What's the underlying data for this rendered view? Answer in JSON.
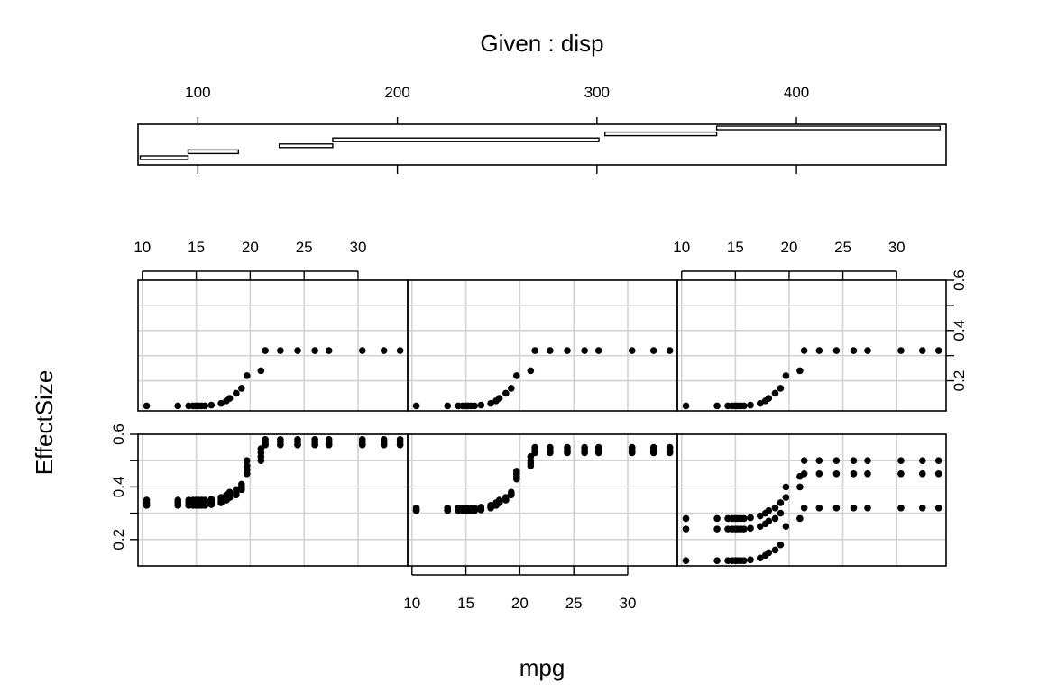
{
  "chart_data": {
    "type": "scatter",
    "layout": "coplot",
    "title": "Given : disp",
    "xlabel": "mpg",
    "ylabel": "EffectSize",
    "given": {
      "ticks": [
        100,
        200,
        300,
        400
      ],
      "range": [
        70,
        475
      ],
      "intervals": [
        [
          71.1,
          95.1
        ],
        [
          95.1,
          120.3
        ],
        [
          140.8,
          167.6
        ],
        [
          167.6,
          301
        ],
        [
          304,
          360
        ],
        [
          360,
          472
        ]
      ]
    },
    "xticks": [
      10,
      15,
      20,
      25,
      30
    ],
    "xlim": [
      9.6,
      34.6
    ],
    "top_row": {
      "yticks": [
        0.2,
        0.4,
        0.6
      ],
      "ylim": [
        0.08,
        0.6
      ],
      "y_axis_side": "right"
    },
    "bottom_row": {
      "yticks": [
        0.2,
        0.4,
        0.6
      ],
      "ylim": [
        0.1,
        0.6
      ],
      "y_axis_side": "left"
    },
    "mpg_values": [
      10.4,
      13.3,
      14.3,
      14.7,
      15.0,
      15.2,
      15.5,
      15.8,
      16.4,
      17.3,
      17.8,
      18.1,
      18.7,
      19.2,
      19.7,
      21.0,
      21.4,
      22.8,
      24.4,
      26.0,
      27.3,
      30.4,
      32.4,
      33.9
    ],
    "panels": [
      {
        "row": "top",
        "col": 1,
        "series": [
          {
            "y": [
              0.1,
              0.1,
              0.1,
              0.1,
              0.1,
              0.1,
              0.1,
              0.1,
              0.103,
              0.11,
              0.12,
              0.13,
              0.15,
              0.17,
              0.22,
              0.24,
              0.32,
              0.32,
              0.32,
              0.32,
              0.32,
              0.32,
              0.32,
              0.32
            ]
          }
        ]
      },
      {
        "row": "top",
        "col": 2,
        "series": [
          {
            "y": [
              0.1,
              0.1,
              0.1,
              0.1,
              0.1,
              0.1,
              0.1,
              0.1,
              0.103,
              0.11,
              0.12,
              0.13,
              0.15,
              0.17,
              0.22,
              0.24,
              0.32,
              0.32,
              0.32,
              0.32,
              0.32,
              0.32,
              0.32,
              0.32
            ]
          }
        ]
      },
      {
        "row": "top",
        "col": 3,
        "series": [
          {
            "y": [
              0.1,
              0.1,
              0.1,
              0.1,
              0.1,
              0.1,
              0.1,
              0.1,
              0.103,
              0.11,
              0.12,
              0.13,
              0.15,
              0.17,
              0.22,
              0.24,
              0.32,
              0.32,
              0.32,
              0.32,
              0.32,
              0.32,
              0.32,
              0.32
            ]
          }
        ]
      },
      {
        "row": "bottom",
        "col": 1,
        "series": [
          {
            "y": [
              0.33,
              0.33,
              0.33,
              0.33,
              0.33,
              0.33,
              0.33,
              0.33,
              0.333,
              0.34,
              0.35,
              0.36,
              0.37,
              0.39,
              0.45,
              0.5,
              0.56,
              0.56,
              0.56,
              0.56,
              0.56,
              0.56,
              0.56,
              0.56
            ]
          },
          {
            "y": [
              0.34,
              0.34,
              0.34,
              0.34,
              0.34,
              0.34,
              0.34,
              0.34,
              0.343,
              0.35,
              0.36,
              0.37,
              0.38,
              0.4,
              0.465,
              0.515,
              0.57,
              0.57,
              0.57,
              0.57,
              0.57,
              0.57,
              0.57,
              0.57
            ]
          },
          {
            "y": [
              0.35,
              0.35,
              0.35,
              0.35,
              0.35,
              0.35,
              0.35,
              0.35,
              0.353,
              0.36,
              0.37,
              0.38,
              0.39,
              0.41,
              0.48,
              0.53,
              0.58,
              0.58,
              0.58,
              0.58,
              0.58,
              0.58,
              0.58,
              0.58
            ]
          },
          {
            "y": [
              0.33,
              0.33,
              0.33,
              0.33,
              0.33,
              0.33,
              0.33,
              0.33,
              0.333,
              0.34,
              0.35,
              0.36,
              0.37,
              0.39,
              0.5,
              0.545,
              0.56,
              0.56,
              0.56,
              0.56,
              0.56,
              0.56,
              0.56,
              0.56
            ]
          }
        ]
      },
      {
        "row": "bottom",
        "col": 2,
        "series": [
          {
            "y": [
              0.31,
              0.31,
              0.31,
              0.31,
              0.31,
              0.31,
              0.31,
              0.31,
              0.313,
              0.32,
              0.33,
              0.34,
              0.35,
              0.37,
              0.43,
              0.48,
              0.53,
              0.53,
              0.53,
              0.53,
              0.53,
              0.53,
              0.53,
              0.53
            ]
          },
          {
            "y": [
              0.315,
              0.315,
              0.315,
              0.315,
              0.315,
              0.315,
              0.315,
              0.315,
              0.318,
              0.325,
              0.335,
              0.345,
              0.355,
              0.375,
              0.44,
              0.49,
              0.54,
              0.54,
              0.54,
              0.54,
              0.54,
              0.54,
              0.54,
              0.54
            ]
          },
          {
            "y": [
              0.32,
              0.32,
              0.32,
              0.32,
              0.32,
              0.32,
              0.32,
              0.32,
              0.323,
              0.33,
              0.34,
              0.35,
              0.36,
              0.38,
              0.45,
              0.5,
              0.55,
              0.55,
              0.55,
              0.55,
              0.55,
              0.55,
              0.55,
              0.55
            ]
          },
          {
            "y": [
              0.31,
              0.31,
              0.31,
              0.31,
              0.31,
              0.31,
              0.31,
              0.31,
              0.313,
              0.32,
              0.33,
              0.34,
              0.35,
              0.37,
              0.46,
              0.515,
              0.535,
              0.535,
              0.535,
              0.535,
              0.535,
              0.535,
              0.535,
              0.535
            ]
          }
        ]
      },
      {
        "row": "bottom",
        "col": 3,
        "series": [
          {
            "y": [
              0.28,
              0.28,
              0.28,
              0.28,
              0.28,
              0.28,
              0.28,
              0.28,
              0.283,
              0.29,
              0.3,
              0.31,
              0.32,
              0.34,
              0.4,
              0.44,
              0.5,
              0.5,
              0.5,
              0.5,
              0.5,
              0.5,
              0.5,
              0.5
            ]
          },
          {
            "y": [
              0.24,
              0.24,
              0.24,
              0.24,
              0.24,
              0.24,
              0.24,
              0.24,
              0.243,
              0.25,
              0.26,
              0.27,
              0.28,
              0.3,
              0.36,
              0.4,
              0.45,
              0.45,
              0.45,
              0.45,
              0.45,
              0.45,
              0.45,
              0.45
            ]
          },
          {
            "y": [
              0.12,
              0.12,
              0.12,
              0.12,
              0.12,
              0.12,
              0.12,
              0.12,
              0.123,
              0.13,
              0.14,
              0.15,
              0.16,
              0.18,
              0.25,
              0.28,
              0.32,
              0.32,
              0.32,
              0.32,
              0.32,
              0.32,
              0.32,
              0.32
            ]
          }
        ]
      }
    ]
  }
}
